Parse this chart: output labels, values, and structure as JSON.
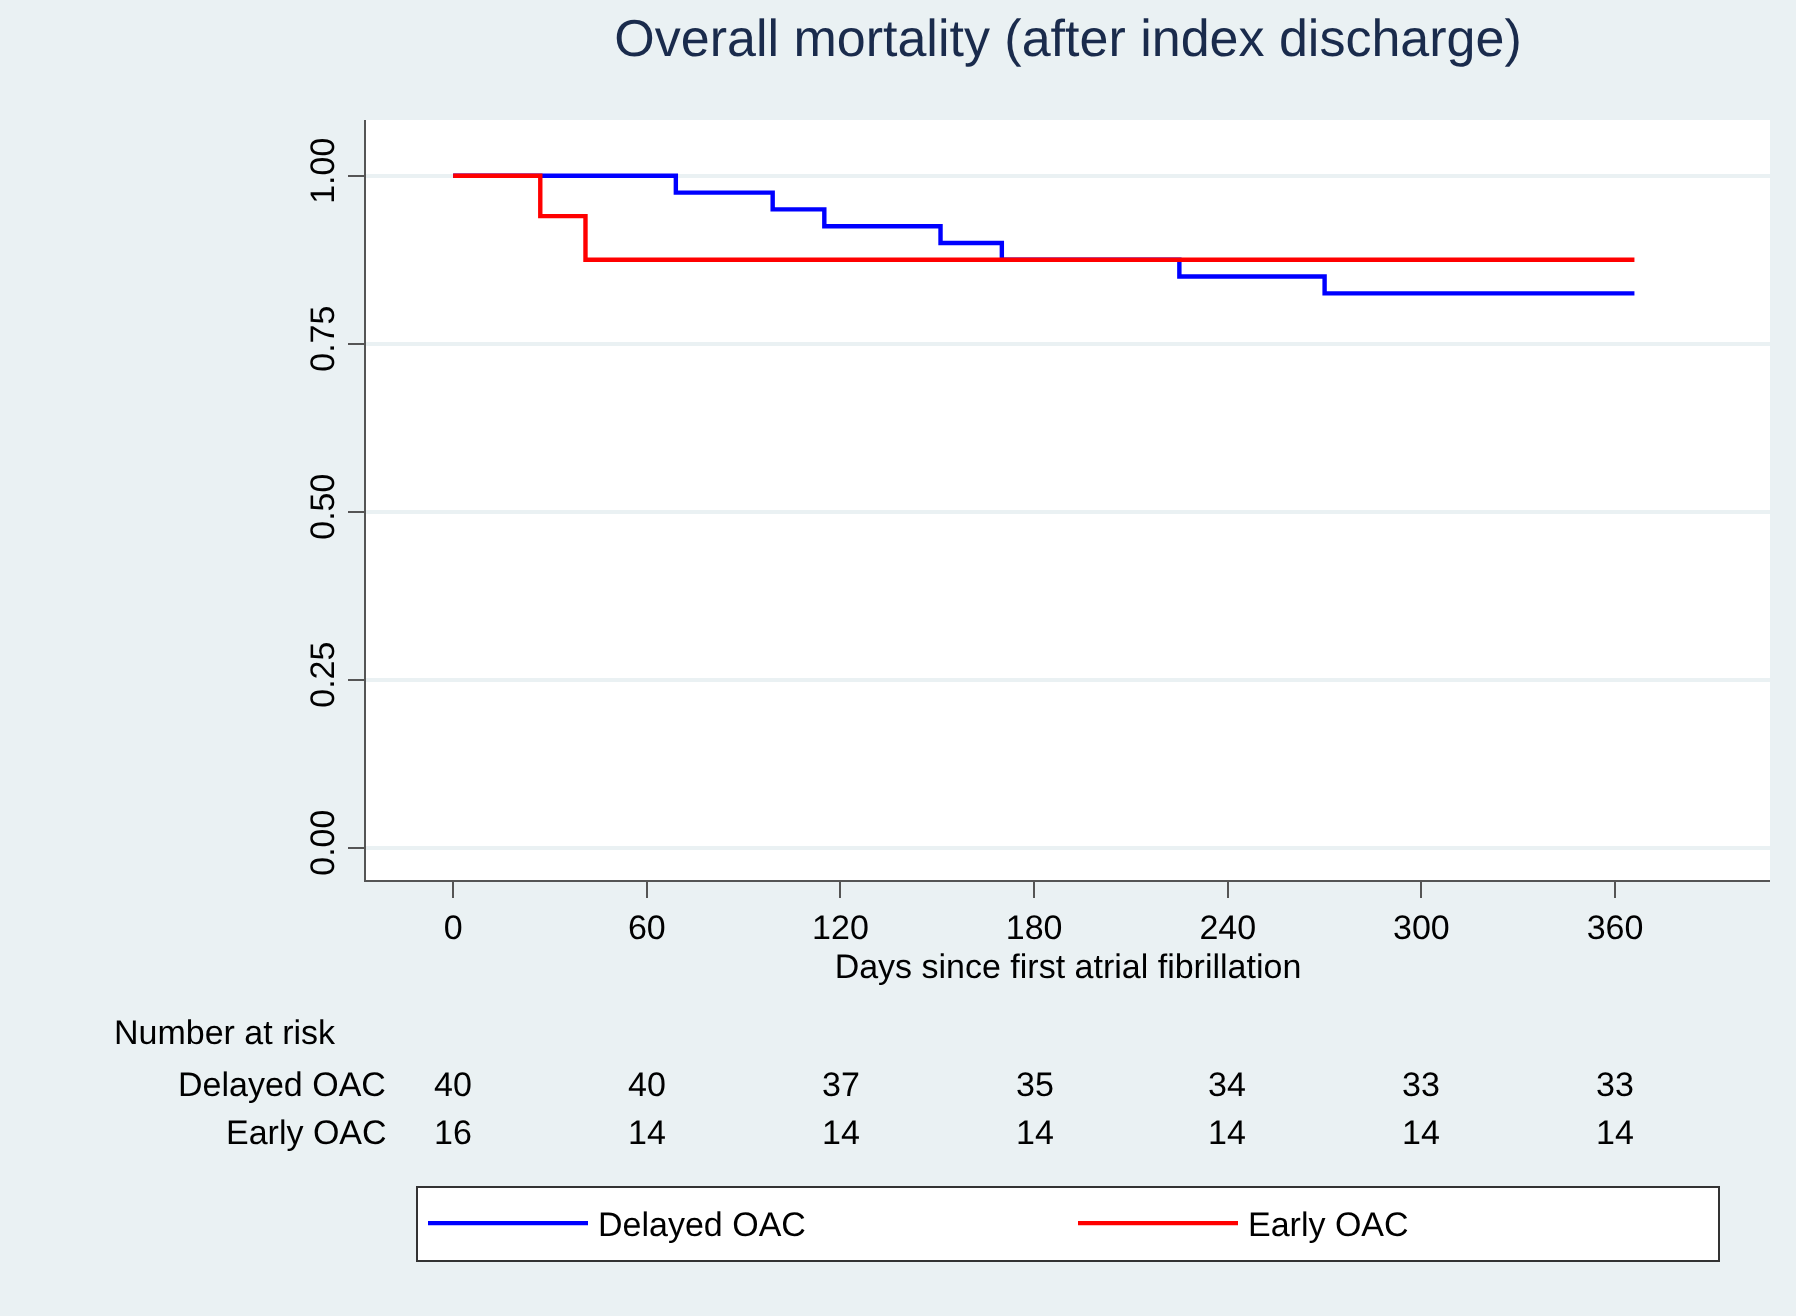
{
  "chart_data": {
    "type": "step",
    "title": "Overall mortality (after index discharge)",
    "xlabel": "Days since first atrial fibrillation",
    "series": [
      {
        "name": "Delayed OAC",
        "color": "#0000ff",
        "x": [
          0,
          69,
          99,
          115,
          151,
          170,
          225,
          270,
          366
        ],
        "values": [
          1,
          0.975,
          0.95,
          0.925,
          0.9,
          0.875,
          0.85,
          0.825,
          0.825
        ]
      },
      {
        "name": "Early OAC",
        "color": "#ff0000",
        "x": [
          0,
          27,
          41,
          366
        ],
        "values": [
          1,
          0.94,
          0.875,
          0.875
        ]
      }
    ],
    "xlim": [
      -27,
      408
    ],
    "xticks": [
      0,
      60,
      120,
      180,
      240,
      300,
      360
    ],
    "ylim": [
      -0.048,
      1.083
    ],
    "yticks": [
      {
        "value": 0,
        "label": "0.00"
      },
      {
        "value": 0.25,
        "label": "0.25"
      },
      {
        "value": 0.5,
        "label": "0.50"
      },
      {
        "value": 0.75,
        "label": "0.75"
      },
      {
        "value": 1,
        "label": "1.00"
      }
    ],
    "grid": "y",
    "legend": "bottom",
    "annotations": [
      "Number at risk",
      "Delayed OAC",
      "40",
      "40",
      "37",
      "35",
      "34",
      "33",
      "33",
      "Early OAC",
      "16",
      "14",
      "14",
      "14",
      "14",
      "14",
      "14"
    ]
  }
}
